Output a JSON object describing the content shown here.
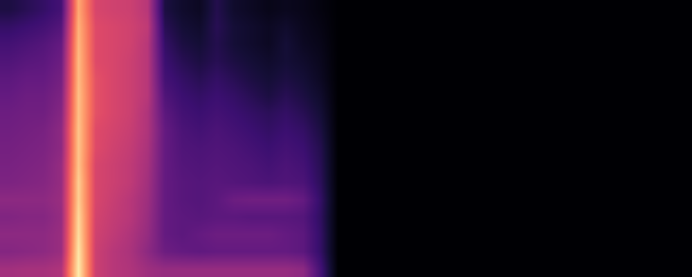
{
  "chart_data": {
    "type": "heatmap",
    "zlim": [
      0,
      1
    ],
    "tick_labels": false,
    "cells": [
      [
        0.12,
        0.15,
        0.18,
        0.22,
        0.82,
        0.58,
        0.56,
        0.55,
        0.5,
        0.12,
        0.08,
        0.06,
        0.14,
        0.08,
        0.06,
        0.04,
        0.05,
        0.04,
        0.02,
        0,
        0,
        0,
        0,
        0,
        0,
        0,
        0,
        0,
        0,
        0,
        0,
        0,
        0,
        0,
        0,
        0,
        0,
        0,
        0,
        0
      ],
      [
        0.18,
        0.2,
        0.22,
        0.26,
        0.84,
        0.6,
        0.58,
        0.56,
        0.52,
        0.15,
        0.1,
        0.08,
        0.15,
        0.1,
        0.08,
        0.06,
        0.08,
        0.05,
        0.03,
        0,
        0,
        0,
        0,
        0,
        0,
        0,
        0,
        0,
        0,
        0,
        0,
        0,
        0,
        0,
        0,
        0,
        0,
        0,
        0,
        0
      ],
      [
        0.22,
        0.24,
        0.26,
        0.3,
        0.85,
        0.6,
        0.58,
        0.56,
        0.5,
        0.18,
        0.12,
        0.1,
        0.14,
        0.1,
        0.08,
        0.06,
        0.1,
        0.06,
        0.04,
        0,
        0,
        0,
        0,
        0,
        0,
        0,
        0,
        0,
        0,
        0,
        0,
        0,
        0,
        0,
        0,
        0,
        0,
        0,
        0,
        0
      ],
      [
        0.25,
        0.27,
        0.28,
        0.32,
        0.86,
        0.6,
        0.58,
        0.55,
        0.5,
        0.2,
        0.15,
        0.12,
        0.15,
        0.12,
        0.1,
        0.08,
        0.1,
        0.08,
        0.05,
        0,
        0,
        0,
        0,
        0,
        0,
        0,
        0,
        0,
        0,
        0,
        0,
        0,
        0,
        0,
        0,
        0,
        0,
        0,
        0,
        0
      ],
      [
        0.28,
        0.3,
        0.3,
        0.34,
        0.86,
        0.62,
        0.58,
        0.55,
        0.5,
        0.22,
        0.18,
        0.15,
        0.18,
        0.15,
        0.12,
        0.1,
        0.12,
        0.1,
        0.06,
        0,
        0,
        0,
        0,
        0,
        0,
        0,
        0,
        0,
        0,
        0,
        0,
        0,
        0,
        0,
        0,
        0,
        0,
        0,
        0,
        0
      ],
      [
        0.3,
        0.32,
        0.32,
        0.36,
        0.87,
        0.62,
        0.58,
        0.55,
        0.5,
        0.25,
        0.2,
        0.18,
        0.2,
        0.18,
        0.15,
        0.12,
        0.15,
        0.12,
        0.08,
        0,
        0,
        0,
        0,
        0,
        0,
        0,
        0,
        0,
        0,
        0,
        0,
        0,
        0,
        0,
        0,
        0,
        0,
        0,
        0,
        0
      ],
      [
        0.32,
        0.33,
        0.33,
        0.38,
        0.87,
        0.62,
        0.58,
        0.55,
        0.48,
        0.28,
        0.22,
        0.2,
        0.22,
        0.2,
        0.18,
        0.16,
        0.18,
        0.15,
        0.1,
        0,
        0,
        0,
        0,
        0,
        0,
        0,
        0,
        0,
        0,
        0,
        0,
        0,
        0,
        0,
        0,
        0,
        0,
        0,
        0,
        0
      ],
      [
        0.33,
        0.34,
        0.35,
        0.4,
        0.88,
        0.6,
        0.57,
        0.54,
        0.48,
        0.3,
        0.24,
        0.22,
        0.24,
        0.22,
        0.2,
        0.18,
        0.2,
        0.18,
        0.12,
        0,
        0,
        0,
        0,
        0,
        0,
        0,
        0,
        0,
        0,
        0,
        0,
        0,
        0,
        0,
        0,
        0,
        0,
        0,
        0,
        0
      ],
      [
        0.34,
        0.35,
        0.36,
        0.4,
        0.88,
        0.6,
        0.56,
        0.53,
        0.47,
        0.3,
        0.25,
        0.24,
        0.25,
        0.24,
        0.22,
        0.2,
        0.22,
        0.2,
        0.14,
        0,
        0,
        0,
        0,
        0,
        0,
        0,
        0,
        0,
        0,
        0,
        0,
        0,
        0,
        0,
        0,
        0,
        0,
        0,
        0,
        0
      ],
      [
        0.35,
        0.36,
        0.37,
        0.42,
        0.88,
        0.58,
        0.55,
        0.52,
        0.46,
        0.3,
        0.26,
        0.25,
        0.26,
        0.25,
        0.24,
        0.22,
        0.24,
        0.22,
        0.15,
        0,
        0,
        0,
        0,
        0,
        0,
        0,
        0,
        0,
        0,
        0,
        0,
        0,
        0,
        0,
        0,
        0,
        0,
        0,
        0,
        0
      ],
      [
        0.36,
        0.37,
        0.38,
        0.42,
        0.9,
        0.58,
        0.55,
        0.52,
        0.45,
        0.3,
        0.27,
        0.26,
        0.27,
        0.26,
        0.25,
        0.24,
        0.25,
        0.24,
        0.16,
        0,
        0,
        0,
        0,
        0,
        0,
        0,
        0,
        0,
        0,
        0,
        0,
        0,
        0,
        0,
        0,
        0,
        0,
        0,
        0,
        0
      ],
      [
        0.4,
        0.4,
        0.4,
        0.43,
        0.9,
        0.58,
        0.54,
        0.5,
        0.44,
        0.3,
        0.27,
        0.26,
        0.28,
        0.32,
        0.33,
        0.33,
        0.33,
        0.3,
        0.18,
        0,
        0,
        0,
        0,
        0,
        0,
        0,
        0,
        0,
        0,
        0,
        0,
        0,
        0,
        0,
        0,
        0,
        0,
        0,
        0,
        0
      ],
      [
        0.37,
        0.38,
        0.38,
        0.42,
        0.92,
        0.57,
        0.53,
        0.5,
        0.43,
        0.3,
        0.28,
        0.27,
        0.28,
        0.28,
        0.27,
        0.27,
        0.27,
        0.26,
        0.17,
        0,
        0,
        0,
        0,
        0,
        0,
        0,
        0,
        0,
        0,
        0,
        0,
        0,
        0,
        0,
        0,
        0,
        0,
        0,
        0,
        0
      ],
      [
        0.4,
        0.4,
        0.4,
        0.43,
        0.93,
        0.56,
        0.52,
        0.48,
        0.42,
        0.3,
        0.28,
        0.3,
        0.32,
        0.32,
        0.32,
        0.32,
        0.3,
        0.28,
        0.18,
        0,
        0,
        0,
        0,
        0,
        0,
        0,
        0,
        0,
        0,
        0,
        0,
        0,
        0,
        0,
        0,
        0,
        0,
        0,
        0,
        0
      ],
      [
        0.38,
        0.39,
        0.4,
        0.43,
        0.95,
        0.55,
        0.5,
        0.47,
        0.4,
        0.32,
        0.3,
        0.29,
        0.3,
        0.3,
        0.3,
        0.3,
        0.3,
        0.28,
        0.18,
        0,
        0,
        0,
        0,
        0,
        0,
        0,
        0,
        0,
        0,
        0,
        0,
        0,
        0,
        0,
        0,
        0,
        0,
        0,
        0,
        0
      ],
      [
        0.45,
        0.46,
        0.46,
        0.48,
        0.96,
        0.55,
        0.5,
        0.48,
        0.44,
        0.42,
        0.42,
        0.42,
        0.42,
        0.42,
        0.42,
        0.42,
        0.42,
        0.4,
        0.22,
        0,
        0,
        0,
        0,
        0,
        0,
        0,
        0,
        0,
        0,
        0,
        0,
        0,
        0,
        0,
        0,
        0,
        0,
        0,
        0,
        0
      ]
    ]
  }
}
